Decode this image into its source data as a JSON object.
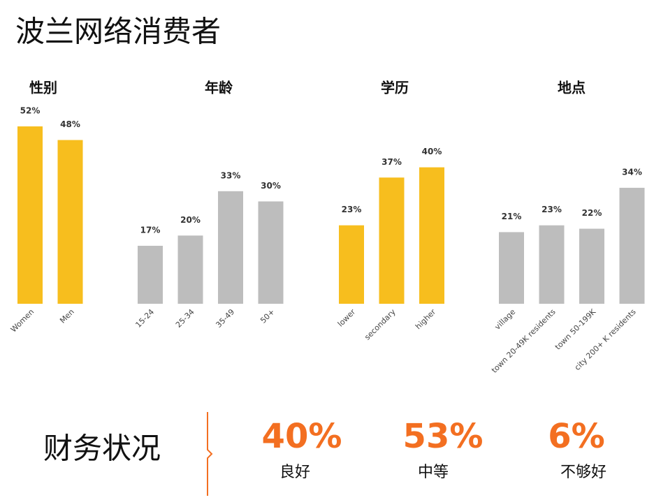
{
  "title": "波兰网络消费者",
  "chart_data": [
    {
      "type": "bar",
      "title": "性别",
      "categories": [
        "Women",
        "Men"
      ],
      "values": [
        52,
        48
      ],
      "value_labels": [
        "52%",
        "48%"
      ],
      "colors": [
        "#F7BE1E",
        "#F7BE1E"
      ]
    },
    {
      "type": "bar",
      "title": "年龄",
      "categories": [
        "15-24",
        "25-34",
        "35-49",
        "50+"
      ],
      "values": [
        17,
        20,
        33,
        30
      ],
      "value_labels": [
        "17%",
        "20%",
        "33%",
        "30%"
      ],
      "colors": [
        "#BDBDBD",
        "#BDBDBD",
        "#BDBDBD",
        "#BDBDBD"
      ]
    },
    {
      "type": "bar",
      "title": "学历",
      "categories": [
        "lower",
        "secondary",
        "higher"
      ],
      "values": [
        23,
        37,
        40
      ],
      "value_labels": [
        "23%",
        "37%",
        "40%"
      ],
      "colors": [
        "#F7BE1E",
        "#F7BE1E",
        "#F7BE1E"
      ]
    },
    {
      "type": "bar",
      "title": "地点",
      "categories": [
        "village",
        "town 20-49K residents",
        "town 50-199K",
        "city 200+ K residents"
      ],
      "values": [
        21,
        23,
        22,
        34
      ],
      "value_labels": [
        "21%",
        "23%",
        "22%",
        "34%"
      ],
      "colors": [
        "#BDBDBD",
        "#BDBDBD",
        "#BDBDBD",
        "#BDBDBD"
      ]
    }
  ],
  "financial": {
    "title": "财务状况",
    "items": [
      {
        "value": "40%",
        "name": "良好"
      },
      {
        "value": "53%",
        "name": "中等"
      },
      {
        "value": "6%",
        "name": "不够好"
      }
    ]
  }
}
